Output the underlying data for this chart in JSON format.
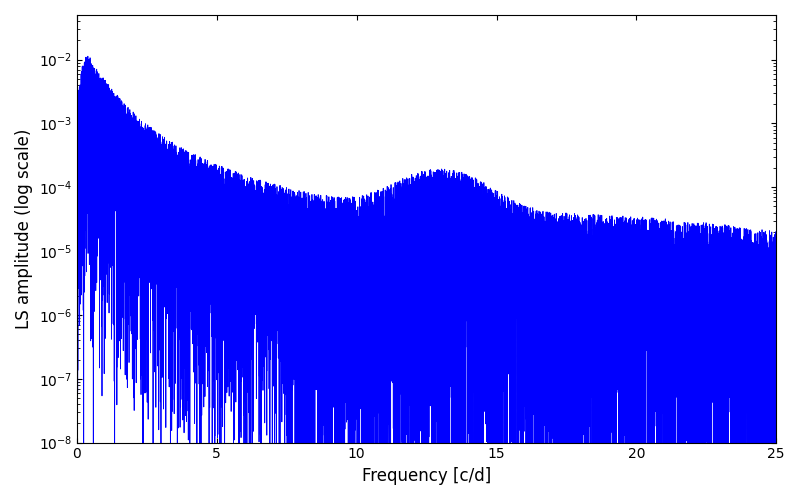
{
  "title": "",
  "xlabel": "Frequency [c/d]",
  "ylabel": "LS amplitude (log scale)",
  "xlim": [
    0,
    25
  ],
  "ylim": [
    1e-08,
    0.05
  ],
  "yscale": "log",
  "line_color": "#0000ff",
  "linewidth": 0.6,
  "figsize": [
    8.0,
    5.0
  ],
  "dpi": 100,
  "freq_min": 0.0,
  "freq_max": 25.0,
  "n_points": 15000,
  "seed": 7
}
